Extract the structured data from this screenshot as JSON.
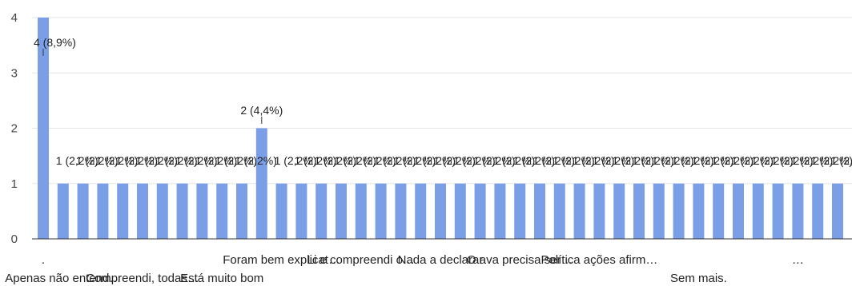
{
  "colors": {
    "bar": "#7b9fe6",
    "grid": "#e6e6e6",
    "axis": "#333333",
    "text": "#222222"
  },
  "chart_data": {
    "type": "bar",
    "ylim": [
      0,
      4
    ],
    "yticks": [
      "0",
      "1",
      "2",
      "3",
      "4"
    ],
    "grid": true,
    "categories": [
      ".",
      "Apenas não entend…",
      "",
      "",
      "",
      "Compreendi, todas…",
      "",
      "",
      "",
      "Está muito bom",
      "",
      "",
      "Foram bem explicat…",
      "",
      "",
      "",
      "Li e compreendi o…",
      "",
      "",
      "",
      "Nada a declarar",
      "",
      "",
      "",
      "O ava precisa ser…",
      "",
      "",
      "",
      "Política ações afirm…",
      "",
      "",
      "",
      "",
      "Sem mais.",
      "",
      "",
      "",
      "",
      "…",
      "",
      ""
    ],
    "values": [
      4,
      1,
      1,
      1,
      1,
      1,
      1,
      1,
      1,
      1,
      1,
      2,
      1,
      1,
      1,
      1,
      1,
      1,
      1,
      1,
      1,
      1,
      1,
      1,
      1,
      1,
      1,
      1,
      1,
      1,
      1,
      1,
      1,
      1,
      1,
      1,
      1,
      1,
      1,
      1,
      1
    ],
    "data_labels": [
      "4 (8,9%)",
      "1 (2,2%)",
      "1 (2,2%)",
      "1 (2,2%)",
      "1 (2,2%)",
      "1 (2,2%)",
      "1 (2,2%)",
      "1 (2,2%)",
      "1 (2,2%)",
      "1 (2,2%)",
      "1 (2,2%)",
      "2 (4,4%)",
      "1 (2,2%)",
      "1 (2,2%)",
      "1 (2,2%)",
      "1 (2,2%)",
      "1 (2,2%)",
      "1 (2,2%)",
      "1 (2,2%)",
      "1 (2,2%)",
      "1 (2,2%)",
      "1 (2,2%)",
      "1 (2,2%)",
      "1 (2,2%)",
      "1 (2,2%)",
      "1 (2,2%)",
      "1 (2,2%)",
      "1 (2,2%)",
      "1 (2,2%)",
      "1 (2,2%)",
      "1 (2,2%)",
      "1 (2,2%)",
      "1 (2,2%)",
      "1 (2,2%)",
      "1 (2,2%)",
      "1 (2,2%)",
      "1 (2,2%)",
      "1 (2,2%)",
      "1 (2,2%)",
      "1 (2,2%)",
      "1 (2,2%)"
    ]
  }
}
